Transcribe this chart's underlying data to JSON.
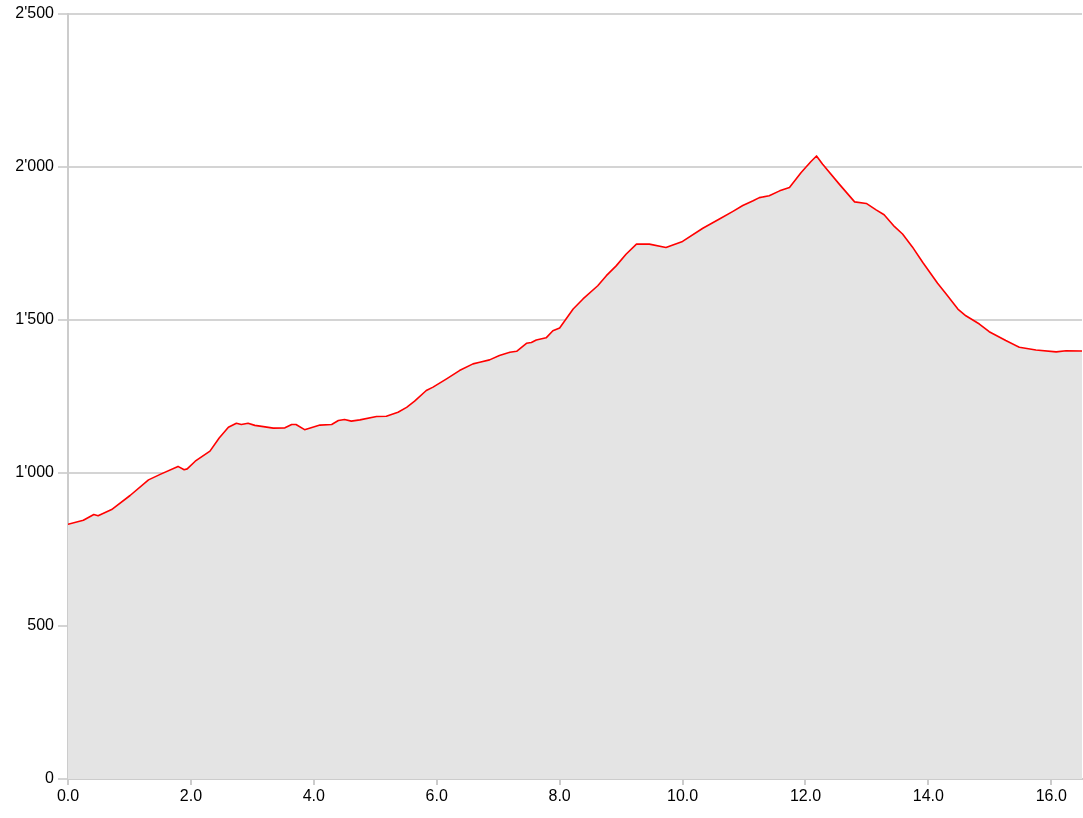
{
  "chart_data": {
    "type": "area",
    "color": "#ff0000",
    "marker": "none",
    "grid": "y",
    "x": [
      0,
      0.25,
      0.42,
      0.49,
      0.71,
      1.01,
      1.31,
      1.5,
      1.79,
      1.89,
      1.94,
      2.07,
      2.31,
      2.46,
      2.61,
      2.74,
      2.82,
      2.93,
      3.04,
      3.18,
      3.34,
      3.53,
      3.64,
      3.71,
      3.85,
      4.1,
      4.29,
      4.4,
      4.5,
      4.61,
      4.75,
      5.02,
      5.18,
      5.37,
      5.51,
      5.64,
      5.83,
      5.94,
      6.16,
      6.37,
      6.59,
      6.7,
      6.86,
      7.02,
      7.19,
      7.3,
      7.46,
      7.54,
      7.62,
      7.78,
      7.89,
      8.0,
      8.22,
      8.38,
      8.62,
      8.76,
      8.92,
      9.08,
      9.25,
      9.46,
      9.73,
      10.0,
      10.33,
      10.6,
      10.82,
      10.98,
      11.14,
      11.25,
      11.41,
      11.58,
      11.74,
      11.93,
      12.09,
      12.18,
      12.28,
      12.55,
      12.8,
      12.99,
      13.15,
      13.28,
      13.45,
      13.58,
      13.74,
      13.91,
      14.15,
      14.29,
      14.48,
      14.61,
      14.83,
      14.99,
      15.26,
      15.48,
      15.75,
      16.08,
      16.24,
      16.5
    ],
    "values": [
      832,
      845,
      864,
      860,
      880,
      926,
      977,
      995,
      1021,
      1010,
      1013,
      1038,
      1071,
      1114,
      1149,
      1162,
      1158,
      1162,
      1155,
      1151,
      1146,
      1147,
      1158,
      1158,
      1141,
      1156,
      1158,
      1171,
      1174,
      1169,
      1173,
      1184,
      1185,
      1198,
      1214,
      1234,
      1269,
      1280,
      1307,
      1334,
      1356,
      1361,
      1369,
      1383,
      1394,
      1397,
      1423,
      1426,
      1434,
      1441,
      1464,
      1473,
      1535,
      1568,
      1611,
      1644,
      1676,
      1714,
      1747,
      1747,
      1736,
      1756,
      1799,
      1829,
      1854,
      1873,
      1888,
      1899,
      1905,
      1921,
      1932,
      1981,
      2017,
      2035,
      2008,
      1943,
      1885,
      1880,
      1859,
      1843,
      1804,
      1780,
      1738,
      1687,
      1619,
      1584,
      1535,
      1513,
      1486,
      1461,
      1432,
      1410,
      1401,
      1395,
      1399,
      1398
    ],
    "xlim": [
      0,
      16.5
    ],
    "xticks": [
      {
        "value": 0,
        "label": "0.0"
      },
      {
        "value": 2,
        "label": "2.0"
      },
      {
        "value": 4,
        "label": "4.0"
      },
      {
        "value": 6,
        "label": "6.0"
      },
      {
        "value": 8,
        "label": "8.0"
      },
      {
        "value": 10,
        "label": "10.0"
      },
      {
        "value": 12,
        "label": "12.0"
      },
      {
        "value": 14,
        "label": "14.0"
      },
      {
        "value": 16,
        "label": "16.0"
      }
    ],
    "ylim": [
      0,
      2500
    ],
    "yticks": [
      0,
      500,
      {
        "value": 1000,
        "label": "1'000"
      },
      {
        "value": 1500,
        "label": "1'500"
      },
      {
        "value": 2000,
        "label": "2'000"
      },
      {
        "value": 2500,
        "label": "2'500"
      }
    ]
  }
}
